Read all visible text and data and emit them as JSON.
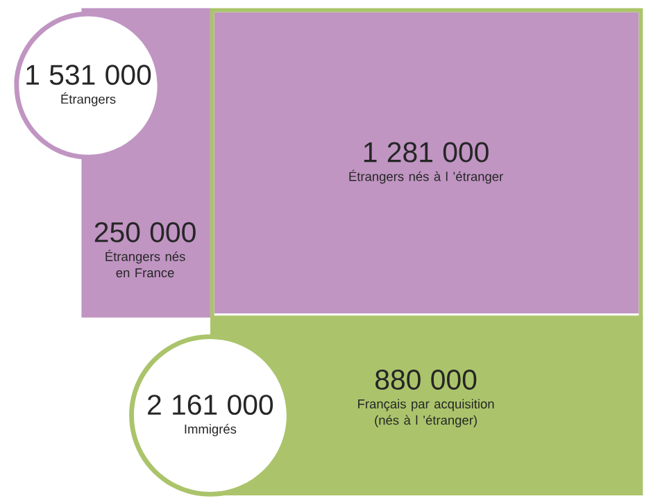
{
  "chart_data": {
    "type": "other",
    "categories": [
      "Étrangers",
      "Étrangers nés en France",
      "Étrangers nés à l ’étranger",
      "Français par acquisition (nés à l ’étranger)",
      "Immigrés"
    ],
    "values": [
      1531000,
      250000,
      1281000,
      880000,
      2161000
    ],
    "value_labels": [
      "1 531 000",
      "250 000",
      "1 281 000",
      "880 000",
      "2 161 000"
    ],
    "colors": [
      "#c095c2",
      "#c095c2",
      "#c095c2",
      "#abc46b",
      "#abc46b"
    ]
  }
}
